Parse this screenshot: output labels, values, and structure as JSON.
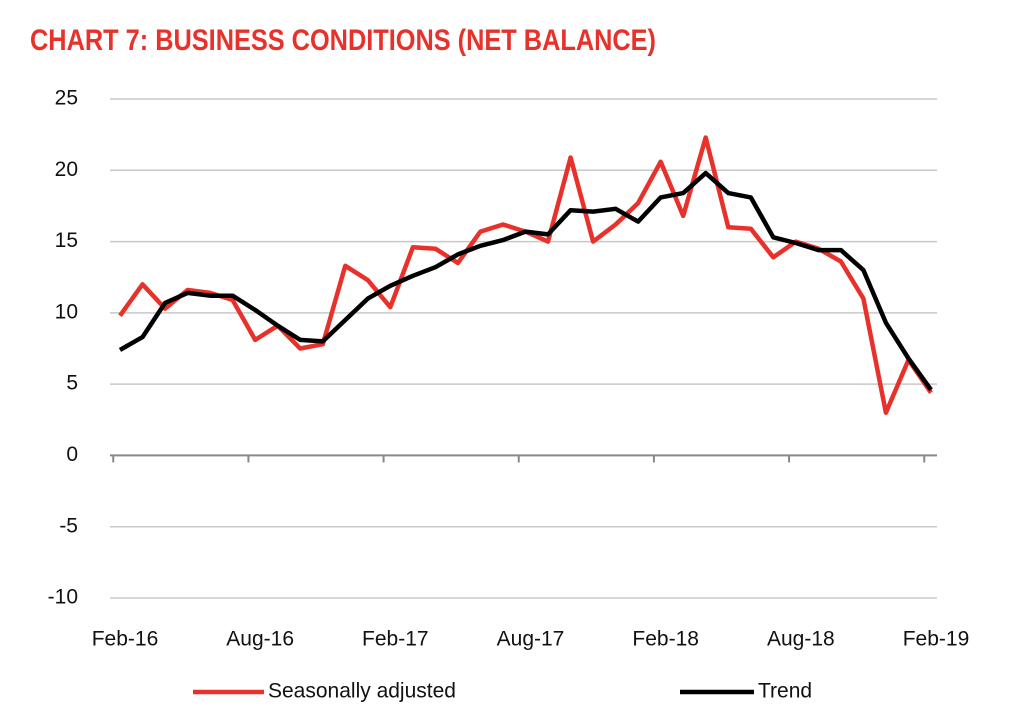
{
  "chart_data": {
    "type": "line",
    "title": "CHART 7: BUSINESS CONDITIONS (NET BALANCE)",
    "categories": [
      "Feb-16",
      null,
      null,
      null,
      null,
      null,
      "Aug-16",
      null,
      null,
      null,
      null,
      null,
      "Feb-17",
      null,
      null,
      null,
      null,
      null,
      "Aug-17",
      null,
      null,
      null,
      null,
      null,
      "Feb-18",
      null,
      null,
      null,
      null,
      null,
      "Aug-18",
      null,
      null,
      null,
      null,
      null,
      "Feb-19"
    ],
    "series": [
      {
        "name": "Seasonally adjusted",
        "color": "#e8312a",
        "values": [
          9.8,
          12.0,
          10.3,
          11.6,
          11.4,
          10.9,
          8.1,
          9.1,
          7.5,
          7.8,
          13.3,
          12.3,
          10.4,
          14.6,
          14.5,
          13.5,
          15.7,
          16.2,
          15.7,
          15.0,
          20.9,
          15.0,
          16.2,
          17.7,
          20.6,
          16.8,
          22.3,
          16.0,
          15.9,
          13.9,
          15.0,
          14.5,
          13.6,
          11.0,
          3.0,
          6.7,
          4.4
        ]
      },
      {
        "name": "Trend",
        "color": "#000000",
        "values": [
          7.4,
          8.3,
          10.7,
          11.4,
          11.2,
          11.2,
          10.2,
          9.1,
          8.1,
          8.0,
          9.5,
          11.0,
          11.9,
          12.6,
          13.2,
          14.1,
          14.7,
          15.1,
          15.7,
          15.5,
          17.2,
          17.1,
          17.3,
          16.4,
          18.1,
          18.4,
          19.8,
          18.4,
          18.1,
          15.3,
          14.9,
          14.4,
          14.4,
          13.0,
          9.3,
          6.8,
          4.6
        ]
      }
    ],
    "ylim": [
      -10,
      25
    ],
    "yticks": [
      -10,
      -5,
      0,
      5,
      10,
      15,
      20,
      25
    ],
    "grid": true,
    "legend": "bottom"
  }
}
